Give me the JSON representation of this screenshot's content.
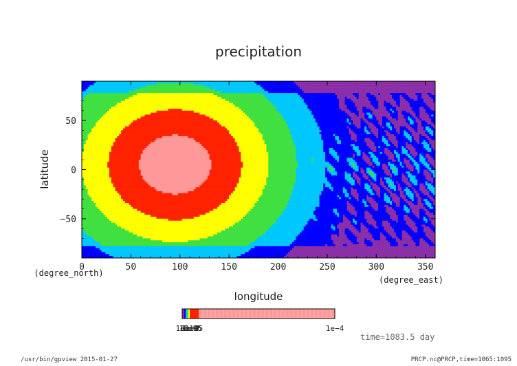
{
  "chart_data": {
    "type": "heatmap",
    "title": "precipitation",
    "xlabel": "longitude",
    "ylabel": "latitude",
    "xunit": "(degree_east)",
    "yunit": "(degree_north)",
    "xlim": [
      0,
      360
    ],
    "ylim": [
      -90,
      90
    ],
    "xticks": [
      "0",
      "50",
      "100",
      "150",
      "200",
      "250",
      "300",
      "350"
    ],
    "yticks": [
      "50",
      "0",
      "−50"
    ],
    "colorbar_labels": [
      "1e-10",
      "1e-9",
      "1e-8",
      "1e-7",
      "1e-6",
      "1e-5",
      "1e-4"
    ],
    "colorbar_last_label": "1e−4",
    "time_label": "time=1083.5  day",
    "palette": [
      "#8b2fa8",
      "#0000ff",
      "#00c8ff",
      "#40e040",
      "#ffff00",
      "#ff2200",
      "#ff9999"
    ]
  },
  "footer": {
    "left": "/usr/bin/gpview  2015-01-27",
    "right": "PRCP.nc@PRCP,time=1065:1095"
  }
}
